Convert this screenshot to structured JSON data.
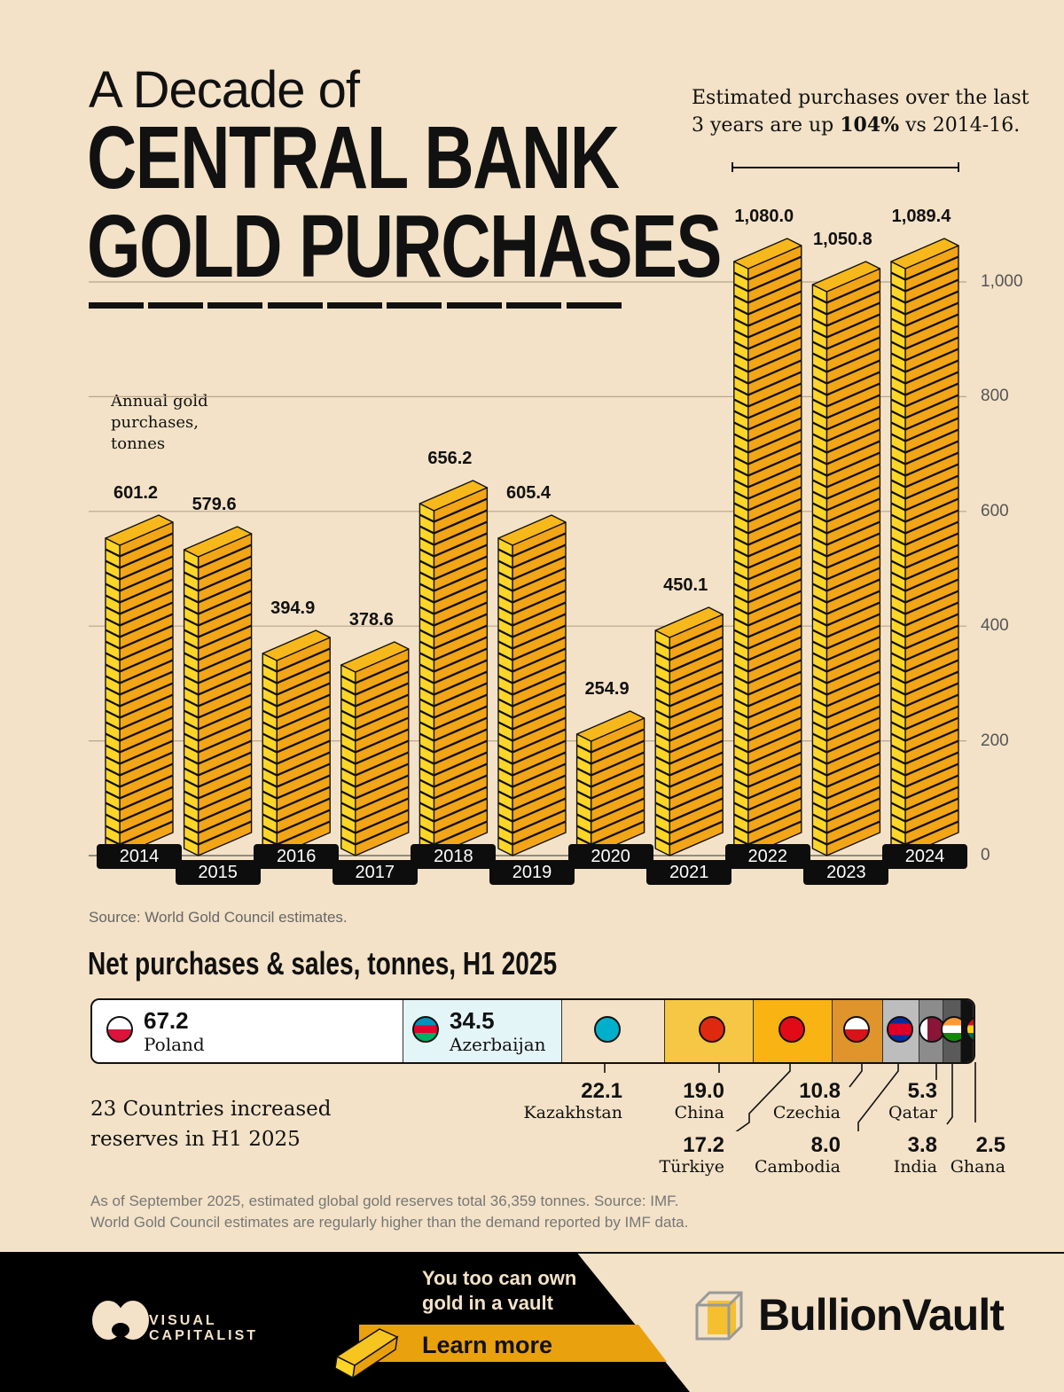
{
  "header": {
    "pre_title": "A Decade of",
    "title_line1": "CENTRAL BANK",
    "title_line2": "GOLD PURCHASES",
    "note_part1": "Estimated purchases over the last",
    "note_part2": "3 years are up ",
    "note_highlight": "104%",
    "note_part3": " vs 2014-16."
  },
  "chart_data": {
    "type": "bar",
    "ylabel": "Annual gold purchases, tonnes",
    "categories": [
      "2014",
      "2015",
      "2016",
      "2017",
      "2018",
      "2019",
      "2020",
      "2021",
      "2022",
      "2023",
      "2024"
    ],
    "values": [
      601.2,
      579.6,
      394.9,
      378.6,
      656.2,
      605.4,
      254.9,
      450.1,
      1080.0,
      1050.8,
      1089.4
    ],
    "value_labels": [
      "601.2",
      "579.6",
      "394.9",
      "378.6",
      "656.2",
      "605.4",
      "254.9",
      "450.1",
      "1,080.0",
      "1,050.8",
      "1,089.4"
    ],
    "ylim": [
      0,
      1100
    ],
    "yticks": [
      0,
      200,
      400,
      600,
      800,
      1000
    ],
    "ytick_labels": [
      "0",
      "200",
      "400",
      "600",
      "800",
      "1,000"
    ],
    "grid": true,
    "colors": {
      "ingot_front": "#f2a516",
      "ingot_end": "#ffd628",
      "ingot_top": "#f7b81c"
    }
  },
  "source": "Source: World Gold Council estimates.",
  "h1": {
    "title": "Net purchases & sales, tonnes, H1 2025",
    "countries": [
      {
        "name": "Poland",
        "value": "67.2",
        "color": "#ffffff"
      },
      {
        "name": "Azerbaijan",
        "value": "34.5",
        "color": "#e4f5f8"
      },
      {
        "name": "Kazakhstan",
        "value": "22.1",
        "color": "#f3e2c7"
      },
      {
        "name": "China",
        "value": "19.0",
        "color": "#f6c744"
      },
      {
        "name": "Türkiye",
        "value": "17.2",
        "color": "#f9b313"
      },
      {
        "name": "Czechia",
        "value": "10.8",
        "color": "#df942c"
      },
      {
        "name": "Cambodia",
        "value": "8.0",
        "color": "#bdbdbd"
      },
      {
        "name": "Qatar",
        "value": "5.3",
        "color": "#8c8c8c"
      },
      {
        "name": "India",
        "value": "3.8",
        "color": "#5a5a5a"
      },
      {
        "name": "Ghana",
        "value": "2.5",
        "color": "#111111"
      }
    ],
    "summary_line1": "23 Countries increased",
    "summary_line2": "reserves in H1 2025",
    "footnote1": "As of September 2025, estimated global gold reserves total 36,359 tonnes. Source: IMF.",
    "footnote2": "World Gold Council estimates are regularly higher than the demand reported by IMF data."
  },
  "footer": {
    "brand1": "VISUAL",
    "brand2": "CAPITALIST",
    "promo1": "You too can own",
    "promo2": "gold in a vault",
    "cta": "Learn more",
    "sponsor": "BullionVault"
  }
}
